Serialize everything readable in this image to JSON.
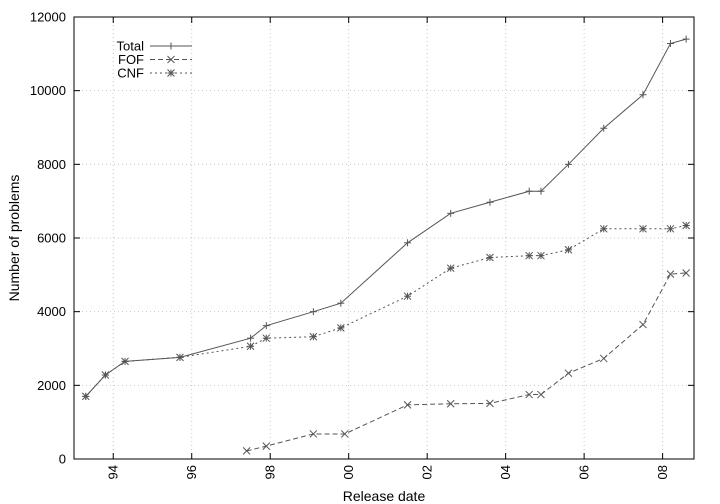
{
  "chart_data": {
    "type": "line",
    "title": "",
    "xlabel": "Release date",
    "ylabel": "Number of problems",
    "xlim": [
      1993.0,
      2008.8
    ],
    "ylim": [
      0,
      12000
    ],
    "grid": true,
    "legend_position": "top-left",
    "x_ticks": [
      {
        "value": 1994,
        "label": "94"
      },
      {
        "value": 1996,
        "label": "96"
      },
      {
        "value": 1998,
        "label": "98"
      },
      {
        "value": 2000,
        "label": "00"
      },
      {
        "value": 2002,
        "label": "02"
      },
      {
        "value": 2004,
        "label": "04"
      },
      {
        "value": 2006,
        "label": "06"
      },
      {
        "value": 2008,
        "label": "08"
      }
    ],
    "y_ticks": [
      {
        "value": 0,
        "label": "0"
      },
      {
        "value": 2000,
        "label": "2000"
      },
      {
        "value": 4000,
        "label": "4000"
      },
      {
        "value": 6000,
        "label": "6000"
      },
      {
        "value": 8000,
        "label": "8000"
      },
      {
        "value": 10000,
        "label": "10000"
      },
      {
        "value": 12000,
        "label": "12000"
      }
    ],
    "series": [
      {
        "name": "Total",
        "color": "#555555",
        "dash": "solid",
        "marker": "plus",
        "points": [
          {
            "x": 1993.3,
            "y": 1700
          },
          {
            "x": 1993.8,
            "y": 2280
          },
          {
            "x": 1994.3,
            "y": 2650
          },
          {
            "x": 1995.7,
            "y": 2760
          },
          {
            "x": 1997.5,
            "y": 3280
          },
          {
            "x": 1997.9,
            "y": 3620
          },
          {
            "x": 1999.1,
            "y": 4000
          },
          {
            "x": 1999.8,
            "y": 4230
          },
          {
            "x": 2001.5,
            "y": 5870
          },
          {
            "x": 2002.6,
            "y": 6670
          },
          {
            "x": 2003.6,
            "y": 6970
          },
          {
            "x": 2004.6,
            "y": 7270
          },
          {
            "x": 2004.9,
            "y": 7270
          },
          {
            "x": 2005.6,
            "y": 8000
          },
          {
            "x": 2006.5,
            "y": 8980
          },
          {
            "x": 2007.5,
            "y": 9890
          },
          {
            "x": 2008.2,
            "y": 11280
          },
          {
            "x": 2008.6,
            "y": 11400
          }
        ]
      },
      {
        "name": "FOF",
        "color": "#555555",
        "dash": "dashed",
        "marker": "cross",
        "points": [
          {
            "x": 1997.4,
            "y": 220
          },
          {
            "x": 1997.9,
            "y": 350
          },
          {
            "x": 1999.1,
            "y": 680
          },
          {
            "x": 1999.9,
            "y": 680
          },
          {
            "x": 2001.5,
            "y": 1470
          },
          {
            "x": 2002.6,
            "y": 1500
          },
          {
            "x": 2003.6,
            "y": 1510
          },
          {
            "x": 2004.6,
            "y": 1750
          },
          {
            "x": 2004.9,
            "y": 1750
          },
          {
            "x": 2005.6,
            "y": 2330
          },
          {
            "x": 2006.5,
            "y": 2730
          },
          {
            "x": 2007.5,
            "y": 3650
          },
          {
            "x": 2008.2,
            "y": 5020
          },
          {
            "x": 2008.6,
            "y": 5050
          }
        ]
      },
      {
        "name": "CNF",
        "color": "#555555",
        "dash": "dotted",
        "marker": "star",
        "points": [
          {
            "x": 1993.3,
            "y": 1700
          },
          {
            "x": 1993.8,
            "y": 2280
          },
          {
            "x": 1994.3,
            "y": 2650
          },
          {
            "x": 1995.7,
            "y": 2760
          },
          {
            "x": 1997.5,
            "y": 3060
          },
          {
            "x": 1997.9,
            "y": 3280
          },
          {
            "x": 1999.1,
            "y": 3320
          },
          {
            "x": 1999.8,
            "y": 3560
          },
          {
            "x": 2001.5,
            "y": 4420
          },
          {
            "x": 2002.6,
            "y": 5180
          },
          {
            "x": 2003.6,
            "y": 5470
          },
          {
            "x": 2004.6,
            "y": 5520
          },
          {
            "x": 2004.9,
            "y": 5520
          },
          {
            "x": 2005.6,
            "y": 5680
          },
          {
            "x": 2006.5,
            "y": 6250
          },
          {
            "x": 2007.5,
            "y": 6250
          },
          {
            "x": 2008.2,
            "y": 6250
          },
          {
            "x": 2008.6,
            "y": 6340
          }
        ]
      }
    ]
  }
}
